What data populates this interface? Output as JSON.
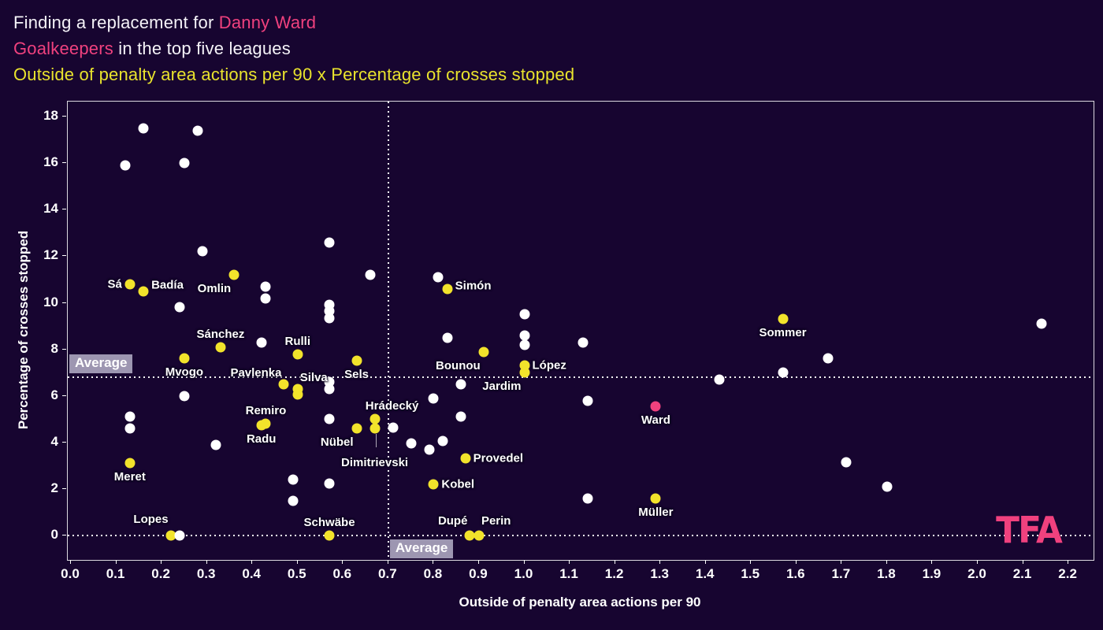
{
  "title": {
    "line1_prefix": "Finding a replacement for ",
    "line1_highlight": "Danny Ward",
    "line2_highlight": "Goalkeepers",
    "line2_suffix": " in the top five leagues",
    "line3": "Outside of penalty area actions per 90 x Percentage of crosses stopped"
  },
  "logo": {
    "text": "TFA"
  },
  "colors": {
    "background": "#170530",
    "accent_pink": "#f0417e",
    "accent_yellow": "#f2e32b",
    "dot_white": "#ffffff",
    "average_box": "#a49eb8"
  },
  "chart_data": {
    "type": "scatter",
    "title": "Outside of penalty area actions per 90 x Percentage of crosses stopped",
    "xlabel": "Outside of penalty area actions per 90",
    "ylabel": "Percentage of crosses stopped",
    "xlim": [
      0,
      2.26
    ],
    "ylim": [
      0,
      18.7
    ],
    "grid": false,
    "x_ticks": [
      "0.0",
      "0.1",
      "0.2",
      "0.3",
      "0.4",
      "0.5",
      "0.6",
      "0.7",
      "0.8",
      "0.9",
      "1.0",
      "1.1",
      "1.2",
      "1.3",
      "1.4",
      "1.5",
      "1.6",
      "1.7",
      "1.8",
      "1.9",
      "2.0",
      "2.1",
      "2.2"
    ],
    "y_ticks": [
      "0",
      "2",
      "4",
      "6",
      "8",
      "10",
      "12",
      "14",
      "16",
      "18"
    ],
    "average_label": "Average",
    "average_x": 0.7,
    "average_y": 6.8,
    "zero_line": true,
    "series": [
      {
        "name": "highlighted-goalkeepers",
        "color": "yellow",
        "points": [
          {
            "name": "Sá",
            "x": 0.13,
            "y": 10.8,
            "pos": "left"
          },
          {
            "name": "Badía",
            "x": 0.16,
            "y": 10.5,
            "pos": "right",
            "ldy": -8
          },
          {
            "name": "Omlin",
            "x": 0.36,
            "y": 11.2,
            "pos": "below-left"
          },
          {
            "name": "Sánchez",
            "x": 0.33,
            "y": 8.1,
            "pos": "above"
          },
          {
            "name": "Rulli",
            "x": 0.5,
            "y": 7.8,
            "pos": "above"
          },
          {
            "name": "Mvogo",
            "x": 0.25,
            "y": 7.6,
            "pos": "below"
          },
          {
            "name": "Pavlenka",
            "x": 0.47,
            "y": 6.5,
            "pos": "above-left"
          },
          {
            "name": "Silva",
            "x": 0.5,
            "y": 6.3,
            "pos": "above-right"
          },
          {
            "name": "",
            "x": 0.5,
            "y": 6.05,
            "pos": "none"
          },
          {
            "name": "Sels",
            "x": 0.63,
            "y": 7.5,
            "pos": "below"
          },
          {
            "name": "Remiro",
            "x": 0.43,
            "y": 4.8,
            "pos": "above"
          },
          {
            "name": "Radu",
            "x": 0.42,
            "y": 4.75,
            "pos": "below"
          },
          {
            "name": "Nübel",
            "x": 0.63,
            "y": 4.6,
            "pos": "below-left"
          },
          {
            "name": "Hrádecký",
            "x": 0.67,
            "y": 5.0,
            "pos": "above",
            "ldx": 22
          },
          {
            "name": "Dimitrievski",
            "x": 0.67,
            "y": 4.6,
            "pos": "below",
            "ldy": 26,
            "connector": true
          },
          {
            "name": "Meret",
            "x": 0.13,
            "y": 3.1,
            "pos": "below"
          },
          {
            "name": "Lopes",
            "x": 0.22,
            "y": 0,
            "pos": "above-left",
            "ldy": -6
          },
          {
            "name": "Schwäbe",
            "x": 0.57,
            "y": 0,
            "pos": "above"
          },
          {
            "name": "Dupé",
            "x": 0.88,
            "y": 0,
            "pos": "above-left",
            "ldy": -4
          },
          {
            "name": "Perin",
            "x": 0.9,
            "y": 0,
            "pos": "above-right",
            "ldy": -4
          },
          {
            "name": "Simón",
            "x": 0.83,
            "y": 10.6,
            "pos": "right",
            "ldy": -4
          },
          {
            "name": "Bounou",
            "x": 0.91,
            "y": 7.9,
            "pos": "below-left"
          },
          {
            "name": "López",
            "x": 1.0,
            "y": 7.3,
            "pos": "right"
          },
          {
            "name": "Jardim",
            "x": 1.0,
            "y": 7.0,
            "pos": "below-left"
          },
          {
            "name": "Provedel",
            "x": 0.87,
            "y": 3.3,
            "pos": "right"
          },
          {
            "name": "Kobel",
            "x": 0.8,
            "y": 2.2,
            "pos": "right"
          },
          {
            "name": "Müller",
            "x": 1.29,
            "y": 1.6,
            "pos": "below"
          },
          {
            "name": "Sommer",
            "x": 1.57,
            "y": 9.3,
            "pos": "below"
          }
        ]
      },
      {
        "name": "danny-ward",
        "color": "pink",
        "points": [
          {
            "name": "Ward",
            "x": 1.29,
            "y": 5.55,
            "pos": "below"
          }
        ]
      },
      {
        "name": "other-goalkeepers",
        "color": "white",
        "points": [
          {
            "x": 0.16,
            "y": 17.5
          },
          {
            "x": 0.28,
            "y": 17.4
          },
          {
            "x": 0.12,
            "y": 15.9
          },
          {
            "x": 0.25,
            "y": 16.0
          },
          {
            "x": 0.29,
            "y": 12.2
          },
          {
            "x": 0.57,
            "y": 12.6
          },
          {
            "x": 0.66,
            "y": 11.2
          },
          {
            "x": 0.43,
            "y": 10.7
          },
          {
            "x": 0.43,
            "y": 10.2
          },
          {
            "x": 0.24,
            "y": 9.8
          },
          {
            "x": 0.57,
            "y": 9.9
          },
          {
            "x": 0.57,
            "y": 9.65
          },
          {
            "x": 0.57,
            "y": 9.35
          },
          {
            "x": 0.81,
            "y": 11.1
          },
          {
            "x": 1.0,
            "y": 9.5
          },
          {
            "x": 0.83,
            "y": 8.5
          },
          {
            "x": 1.0,
            "y": 8.6
          },
          {
            "x": 1.0,
            "y": 8.2
          },
          {
            "x": 1.13,
            "y": 8.3
          },
          {
            "x": 0.42,
            "y": 8.3
          },
          {
            "x": 0.57,
            "y": 6.6
          },
          {
            "x": 0.57,
            "y": 6.3
          },
          {
            "x": 0.25,
            "y": 6.0
          },
          {
            "x": 0.13,
            "y": 5.1
          },
          {
            "x": 0.13,
            "y": 4.6
          },
          {
            "x": 0.57,
            "y": 5.0
          },
          {
            "x": 0.71,
            "y": 4.65
          },
          {
            "x": 0.32,
            "y": 3.9
          },
          {
            "x": 0.86,
            "y": 6.5
          },
          {
            "x": 0.8,
            "y": 5.9
          },
          {
            "x": 1.14,
            "y": 5.8
          },
          {
            "x": 0.86,
            "y": 5.1
          },
          {
            "x": 0.75,
            "y": 3.95
          },
          {
            "x": 0.82,
            "y": 4.05
          },
          {
            "x": 0.79,
            "y": 3.7
          },
          {
            "x": 1.43,
            "y": 6.7
          },
          {
            "x": 1.57,
            "y": 7.0
          },
          {
            "x": 1.67,
            "y": 7.6
          },
          {
            "x": 2.14,
            "y": 9.1
          },
          {
            "x": 1.71,
            "y": 3.15
          },
          {
            "x": 1.8,
            "y": 2.1
          },
          {
            "x": 1.14,
            "y": 1.6
          },
          {
            "x": 0.49,
            "y": 2.4
          },
          {
            "x": 0.57,
            "y": 2.25
          },
          {
            "x": 0.49,
            "y": 1.5
          },
          {
            "x": 0.24,
            "y": 0
          }
        ]
      }
    ]
  }
}
